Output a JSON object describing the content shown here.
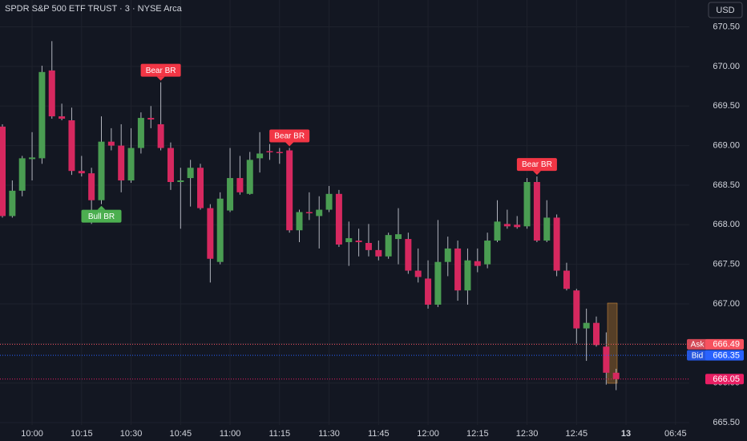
{
  "chart_data": {
    "type": "candlestick",
    "title": "SPDR S&P 500 ETF TRUST · 3 · NYSE Arca",
    "currency": "USD",
    "up_color": "#4a9d52",
    "down_color": "#d6285f",
    "wick_color": "#b2b5be",
    "x": [
      "09:51",
      "09:54",
      "09:57",
      "10:00",
      "10:03",
      "10:06",
      "10:09",
      "10:12",
      "10:15",
      "10:18",
      "10:21",
      "10:24",
      "10:27",
      "10:30",
      "10:33",
      "10:36",
      "10:39",
      "10:42",
      "10:45",
      "10:48",
      "10:51",
      "10:54",
      "10:57",
      "11:00",
      "11:03",
      "11:06",
      "11:09",
      "11:12",
      "11:15",
      "11:18",
      "11:21",
      "11:24",
      "11:27",
      "11:30",
      "11:33",
      "11:36",
      "11:39",
      "11:42",
      "11:45",
      "11:48",
      "11:51",
      "11:54",
      "11:57",
      "12:00",
      "12:03",
      "12:06",
      "12:09",
      "12:12",
      "12:15",
      "12:18",
      "12:21",
      "12:24",
      "12:27",
      "12:30",
      "12:33",
      "12:36",
      "12:39",
      "12:42",
      "12:45",
      "12:48",
      "12:51",
      "12:54",
      "12:57"
    ],
    "open": [
      669.24,
      668.11,
      668.43,
      668.83,
      668.84,
      669.95,
      669.37,
      669.32,
      668.68,
      668.65,
      668.31,
      669.05,
      669.0,
      668.56,
      668.97,
      669.35,
      669.27,
      668.97,
      668.54,
      668.59,
      668.72,
      668.21,
      667.53,
      668.18,
      668.59,
      668.39,
      668.84,
      668.93,
      668.92,
      668.94,
      667.93,
      668.16,
      668.11,
      668.19,
      668.39,
      667.78,
      667.8,
      667.77,
      667.68,
      667.6,
      667.82,
      667.82,
      667.42,
      667.32,
      666.99,
      667.53,
      667.7,
      667.17,
      667.54,
      667.5,
      667.8,
      668.01,
      668.0,
      667.98,
      668.54,
      667.8,
      668.09,
      667.42,
      667.17,
      666.69,
      666.76,
      666.46,
      666.13
    ],
    "high": [
      669.27,
      668.56,
      668.87,
      669.17,
      670.01,
      670.32,
      669.53,
      669.48,
      668.87,
      668.72,
      669.37,
      669.22,
      669.27,
      669.22,
      669.42,
      669.5,
      669.8,
      669.04,
      668.72,
      668.82,
      668.77,
      668.26,
      668.41,
      668.97,
      668.87,
      668.92,
      669.17,
      669.02,
      668.97,
      668.97,
      668.19,
      668.41,
      668.36,
      668.49,
      668.44,
      668.04,
      667.95,
      668.01,
      667.8,
      667.9,
      668.21,
      667.9,
      667.7,
      667.55,
      668.06,
      667.85,
      667.8,
      667.7,
      667.7,
      667.9,
      668.31,
      668.19,
      668.11,
      668.59,
      668.61,
      668.31,
      668.13,
      667.52,
      667.19,
      666.94,
      666.84,
      666.64,
      666.18
    ],
    "low": [
      668.09,
      668.09,
      668.36,
      668.56,
      668.77,
      669.34,
      669.32,
      668.63,
      668.61,
      668.01,
      668.26,
      668.94,
      668.41,
      668.53,
      668.9,
      669.22,
      668.94,
      668.44,
      667.95,
      668.23,
      668.19,
      667.27,
      667.5,
      668.16,
      668.38,
      668.38,
      668.66,
      668.82,
      668.77,
      667.9,
      667.78,
      668.06,
      667.7,
      668.16,
      667.72,
      667.48,
      667.6,
      667.6,
      667.55,
      667.57,
      667.5,
      667.38,
      667.27,
      666.94,
      666.96,
      667.35,
      667.04,
      666.99,
      667.4,
      667.45,
      667.78,
      667.95,
      667.95,
      667.95,
      667.78,
      667.78,
      667.35,
      667.17,
      666.5,
      666.28,
      666.46,
      665.98,
      665.91
    ],
    "close": [
      668.11,
      668.43,
      668.84,
      668.85,
      669.93,
      669.37,
      669.34,
      668.68,
      668.65,
      668.31,
      669.05,
      669.0,
      668.56,
      668.97,
      669.35,
      669.33,
      668.97,
      668.54,
      668.56,
      668.72,
      668.21,
      667.57,
      668.33,
      668.59,
      668.41,
      668.82,
      668.9,
      668.92,
      668.91,
      667.93,
      668.16,
      668.15,
      668.19,
      668.39,
      667.75,
      667.83,
      667.78,
      667.68,
      667.6,
      667.87,
      667.88,
      667.42,
      667.34,
      666.99,
      667.53,
      667.7,
      667.17,
      667.55,
      667.48,
      667.8,
      668.04,
      667.98,
      667.97,
      668.54,
      667.8,
      668.09,
      667.42,
      667.19,
      666.69,
      666.76,
      666.48,
      666.13,
      666.05
    ],
    "ylim": [
      665.47,
      670.84
    ],
    "yticks": [
      {
        "value": 665.5,
        "label": "665.50"
      },
      {
        "value": 666,
        "label": "666.00"
      },
      {
        "value": 666.5,
        "label": "666.50"
      },
      {
        "value": 667,
        "label": "667.00"
      },
      {
        "value": 667.5,
        "label": "667.50"
      },
      {
        "value": 668,
        "label": "668.00"
      },
      {
        "value": 668.5,
        "label": "668.50"
      },
      {
        "value": 669,
        "label": "669.00"
      },
      {
        "value": 669.5,
        "label": "669.50"
      },
      {
        "value": 670,
        "label": "670.00"
      },
      {
        "value": 670.5,
        "label": "670.50"
      }
    ],
    "xticks": [
      "10:00",
      "10:15",
      "10:30",
      "10:45",
      "11:00",
      "11:15",
      "11:30",
      "11:45",
      "12:00",
      "12:15",
      "12:30",
      "12:45",
      {
        "value": "13:00",
        "label": "13"
      },
      {
        "value": "13:15",
        "label": "06:45"
      }
    ],
    "grid": true,
    "annotations": [
      {
        "text": "Bull BR",
        "x": "10:21",
        "position": "below",
        "color": "#4caf50"
      },
      {
        "text": "Bear BR",
        "x": "10:39",
        "position": "above",
        "color": "#f23645"
      },
      {
        "text": "Bear BR",
        "x": "11:18",
        "position": "above",
        "color": "#f23645"
      },
      {
        "text": "Bear BR",
        "x": "12:33",
        "position": "above",
        "color": "#f23645"
      }
    ],
    "price_lines": [
      {
        "label": "Ask",
        "value": 666.49,
        "color": "#f7525f"
      },
      {
        "label": "Bid",
        "value": 666.35,
        "color": "#2962ff"
      },
      {
        "value": 666.05,
        "color": "#e91e63"
      }
    ]
  }
}
